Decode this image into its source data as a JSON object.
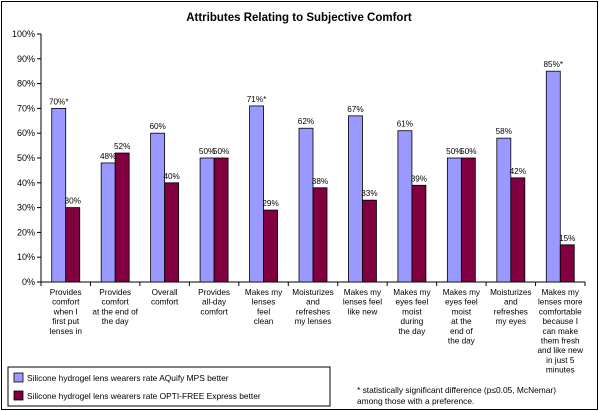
{
  "chart_data": {
    "type": "bar",
    "title": "Attributes Relating to Subjective Comfort",
    "ylim": [
      0,
      100
    ],
    "yticks": [
      "0%",
      "10%",
      "20%",
      "30%",
      "40%",
      "50%",
      "60%",
      "70%",
      "80%",
      "90%",
      "100%"
    ],
    "grid": false,
    "legend_position": "bottom-left",
    "categories": [
      [
        "Provides",
        "comfort",
        "when I",
        "first put",
        "lenses in"
      ],
      [
        "Provides",
        "comfort",
        "at the end of",
        "the day"
      ],
      [
        "Overall",
        "comfort"
      ],
      [
        "Provides",
        "all-day",
        "comfort"
      ],
      [
        "Makes my",
        "lenses",
        "feel",
        "clean"
      ],
      [
        "Moisturizes",
        "and",
        "refreshes",
        "my lenses"
      ],
      [
        "Makes my",
        "lenses feel",
        "like new"
      ],
      [
        "Makes my",
        "eyes feel",
        "moist",
        "during",
        "the day"
      ],
      [
        "Makes my",
        "eyes feel",
        "moist",
        "at the",
        "end of",
        "the day"
      ],
      [
        "Moisturizes",
        "and",
        "refreshes",
        "my eyes"
      ],
      [
        "Makes my",
        "lenses more",
        "comfortable",
        "because I",
        "can make",
        "them fresh",
        "and like new",
        "in just 5",
        "minutes"
      ]
    ],
    "series": [
      {
        "name": "Silicone hydrogel lens wearers rate AQuify MPS better",
        "color": "#9999ff",
        "values": [
          70,
          48,
          60,
          50,
          71,
          62,
          67,
          61,
          50,
          58,
          85
        ],
        "labels": [
          "70%*",
          "48%",
          "60%",
          "50%",
          "71%*",
          "62%",
          "67%",
          "61%",
          "50%",
          "58%",
          "85%*"
        ]
      },
      {
        "name": "Silicone hydrogel lens wearers rate OPTI-FREE Express better",
        "color": "#800040",
        "values": [
          30,
          52,
          40,
          50,
          29,
          38,
          33,
          39,
          50,
          42,
          15
        ],
        "labels": [
          "30%",
          "52%",
          "40%",
          "50%",
          "29%",
          "38%",
          "33%",
          "39%",
          "50%",
          "42%",
          "15%"
        ]
      }
    ],
    "footnote": [
      "* statistically significant difference (p≤0.05, McNemar)",
      "among those with a preference."
    ]
  }
}
